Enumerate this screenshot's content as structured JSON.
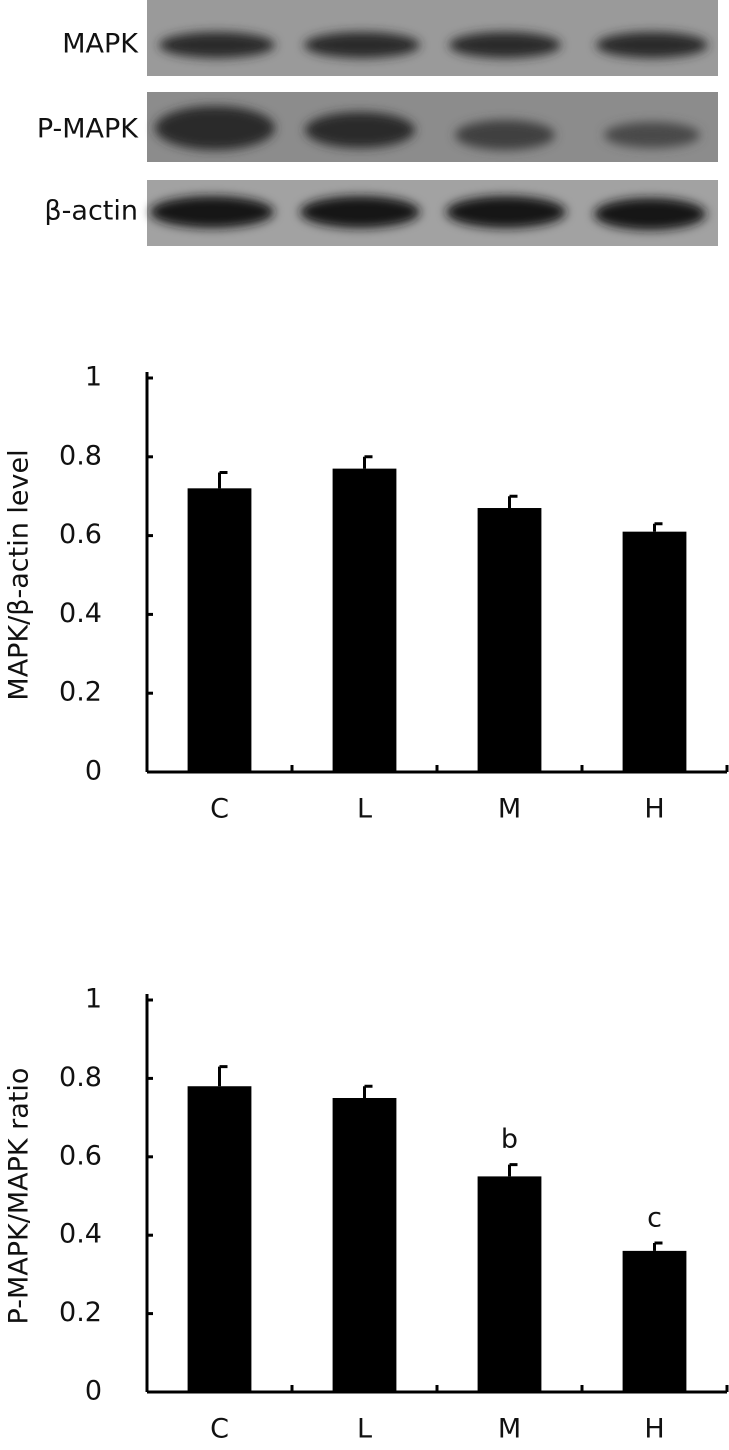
{
  "blot": {
    "labels": [
      "MAPK",
      "P-MAPK",
      "β-actin"
    ]
  },
  "chart_data": [
    {
      "type": "bar",
      "y_label": "MAPK/β-actin level",
      "categories": [
        "C",
        "L",
        "M",
        "H"
      ],
      "values": [
        0.72,
        0.77,
        0.67,
        0.61
      ],
      "errors": [
        0.04,
        0.03,
        0.03,
        0.02
      ],
      "color": "#000000",
      "ylim": [
        0,
        1
      ],
      "yticks": [
        0,
        0.2,
        0.4,
        0.6,
        0.8,
        1
      ]
    },
    {
      "type": "bar",
      "y_label": "P-MAPK/MAPK ratio",
      "categories": [
        "C",
        "L",
        "M",
        "H"
      ],
      "values": [
        0.78,
        0.75,
        0.55,
        0.36
      ],
      "errors": [
        0.05,
        0.03,
        0.03,
        0.02
      ],
      "color": "#000000",
      "ylim": [
        0,
        1
      ],
      "yticks": [
        0,
        0.2,
        0.4,
        0.6,
        0.8,
        1
      ],
      "annotations": [
        {
          "category": "M",
          "text": "b"
        },
        {
          "category": "H",
          "text": "c"
        }
      ]
    }
  ]
}
